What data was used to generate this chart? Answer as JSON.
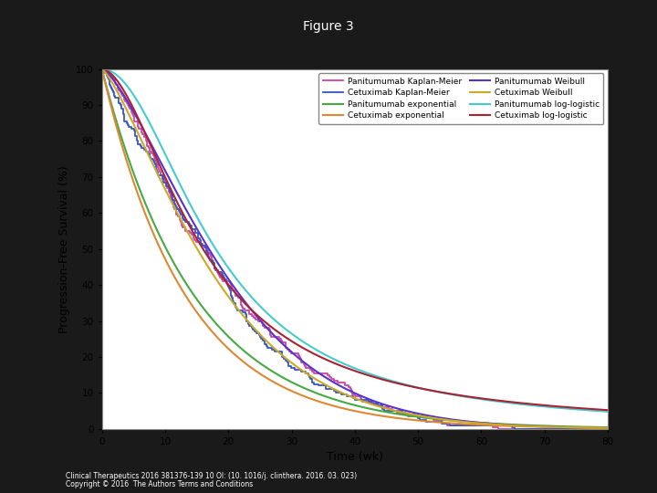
{
  "title": "Figure 3",
  "xlabel": "Time (wk)",
  "ylabel": "Progression-Free Survival (%)",
  "xlim": [
    0,
    80
  ],
  "ylim": [
    0,
    100
  ],
  "xticks": [
    0,
    10,
    20,
    30,
    40,
    50,
    60,
    70,
    80
  ],
  "yticks": [
    0,
    10,
    20,
    30,
    40,
    50,
    60,
    70,
    80,
    90,
    100
  ],
  "background_color": "#1a1a1a",
  "plot_bg_color": "#ffffff",
  "title_color": "#ffffff",
  "footer_text1": "Clinical Therapeutics 2016 381376-139 10 Ol: (10. 1016/j. clinthera. 2016. 03. 023)",
  "footer_text2": "Copyright © 2016  The Authors Terms and Conditions",
  "legend_entries": [
    "Panitumumab Kaplan-Meier",
    "Panitumumab exponential",
    "Panitumumab Weibull",
    "Panitumumab log-logistic",
    "Cetuximab Kaplan-Meier",
    "Cetuximab exponential",
    "Cetuximab Weibull",
    "Cetuximab log-logistic"
  ],
  "line_colors": {
    "pani_km": "#cc44aa",
    "pani_exp": "#44aa44",
    "pani_weibull": "#5533cc",
    "pani_loglog": "#44cccc",
    "cetu_km": "#3355cc",
    "cetu_exp": "#dd8833",
    "cetu_weibull": "#ccaa22",
    "cetu_loglog": "#aa2233"
  }
}
